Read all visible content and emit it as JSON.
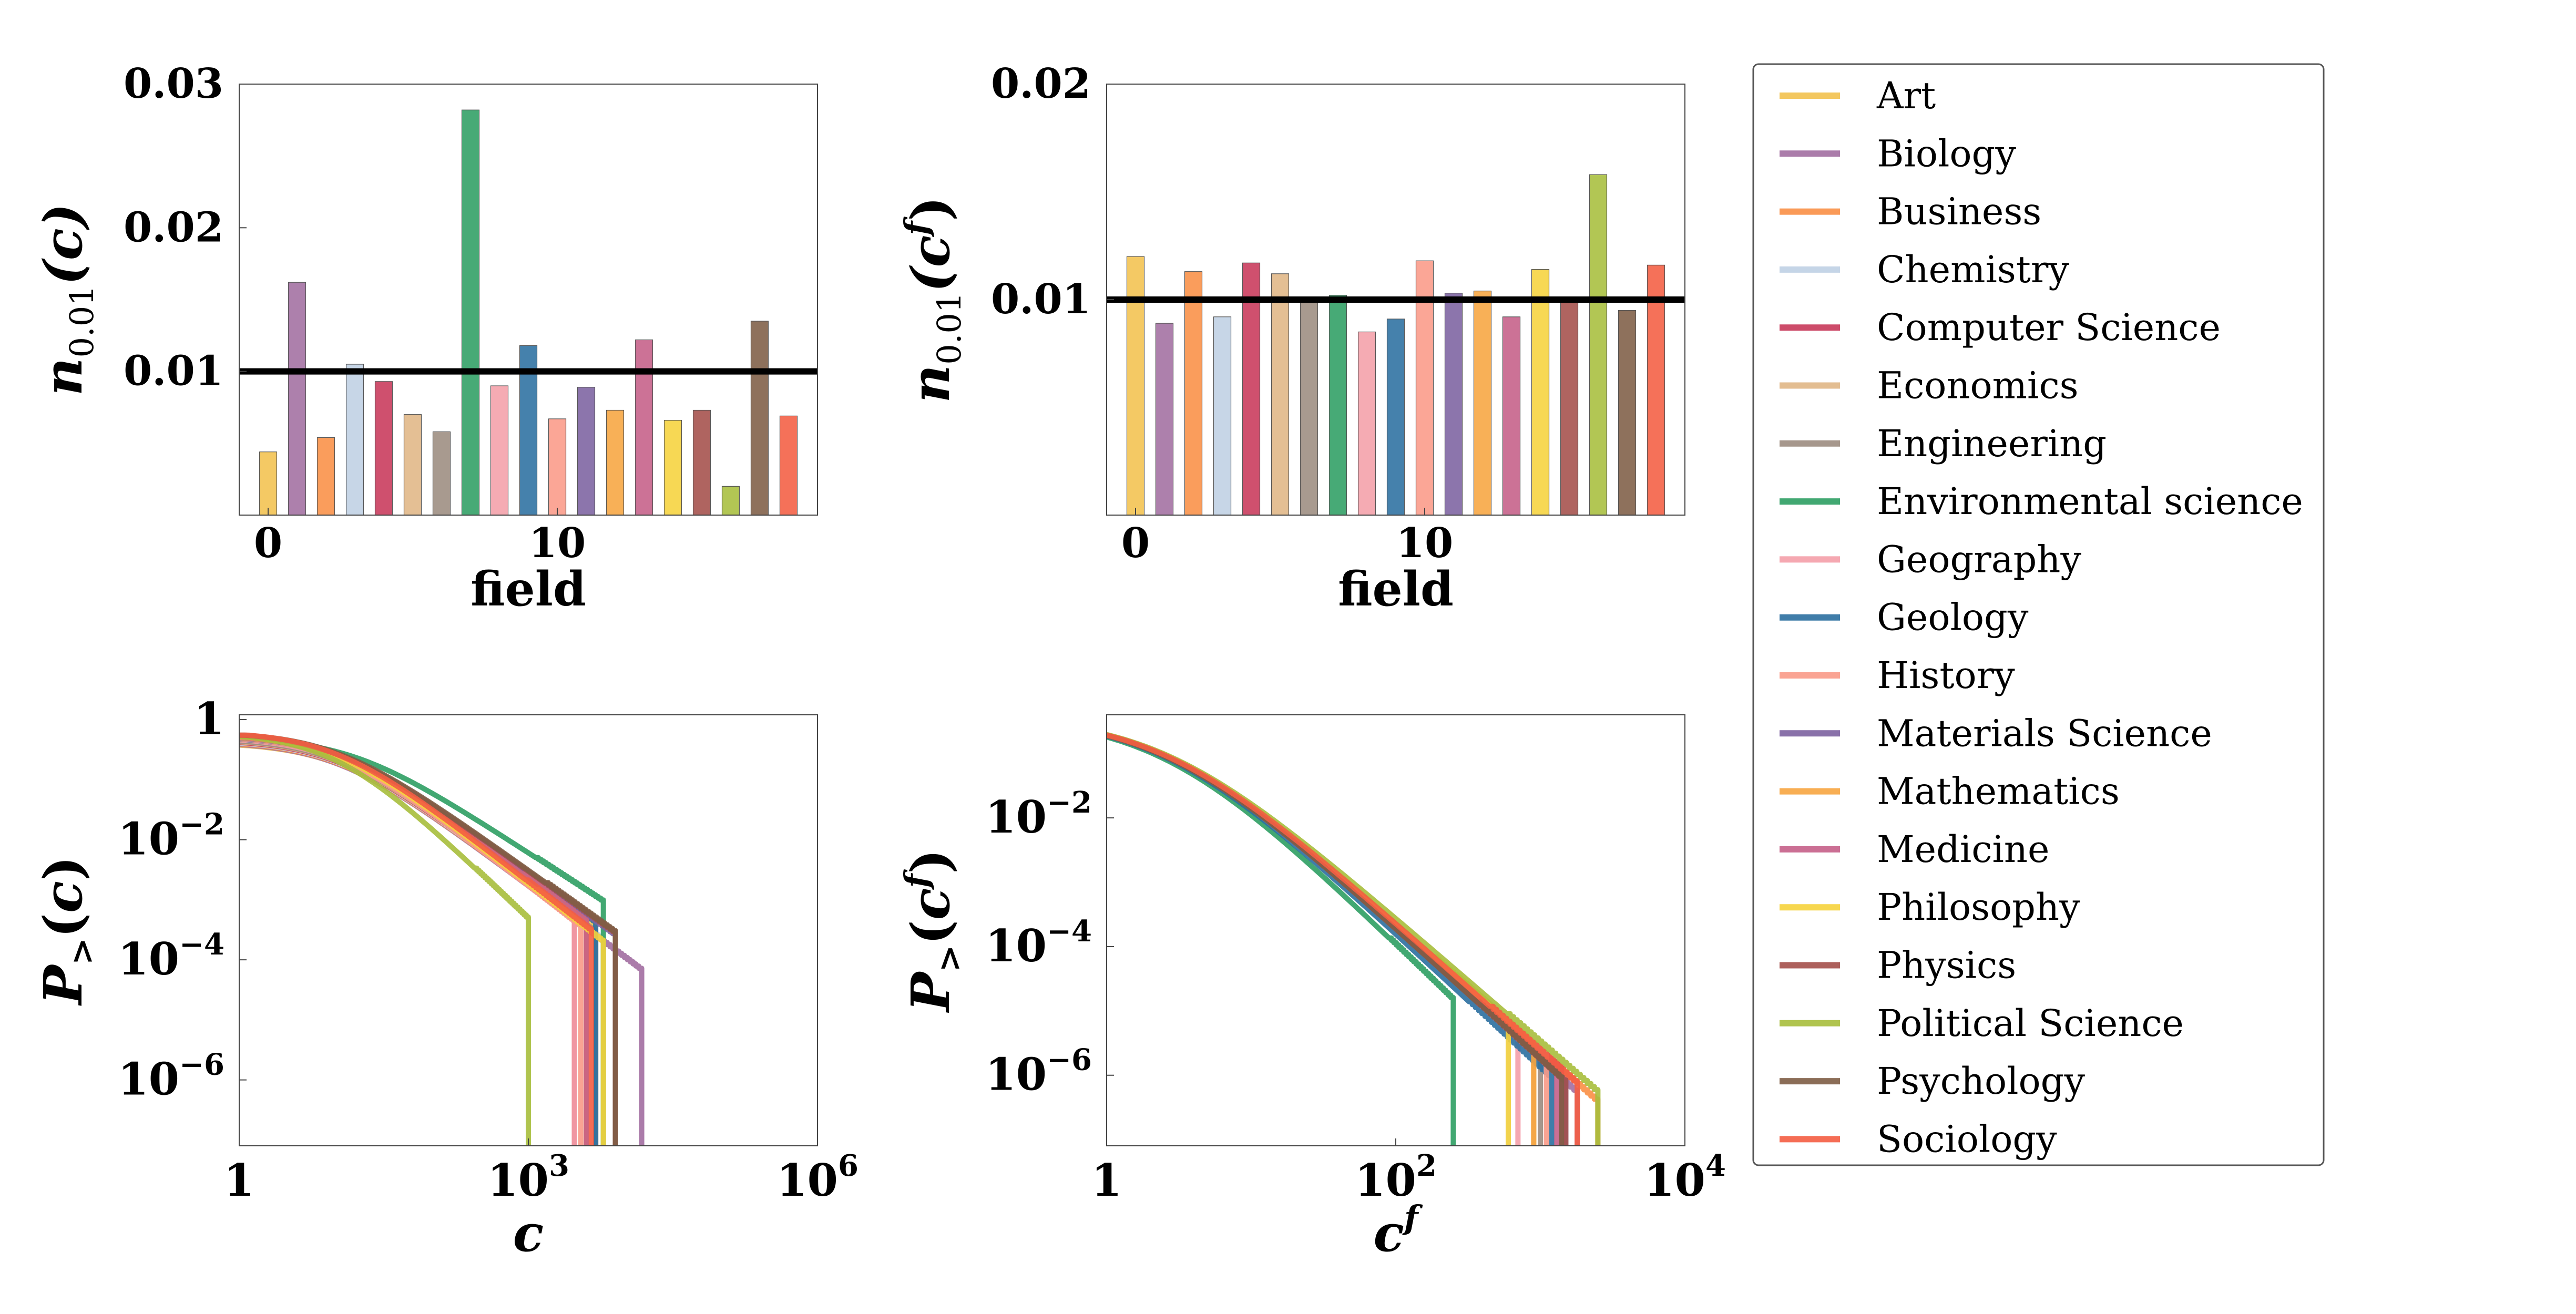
{
  "fields": [
    "Art",
    "Biology",
    "Business",
    "Chemistry",
    "Computer Science",
    "Economics",
    "Engineering",
    "Environmental science",
    "Geography",
    "Geology",
    "History",
    "Materials Science",
    "Mathematics",
    "Medicine",
    "Philosophy",
    "Physics",
    "Political Science",
    "Psychology",
    "Sociology"
  ],
  "colors": [
    "#F2C14E",
    "#A26EA1",
    "#F98F45",
    "#BFD0E4",
    "#C8385A",
    "#E0B685",
    "#9C8C80",
    "#2E9E63",
    "#F49FA8",
    "#2B6FA0",
    "#FA9A87",
    "#7C62A0",
    "#F7A540",
    "#C55F88",
    "#F6D33C",
    "#A44F4A",
    "#A7BE3C",
    "#7E5D45",
    "#F45D42"
  ],
  "chart_data": [
    {
      "id": "top-left",
      "type": "bar",
      "xlabel": "field",
      "ylabel": "n_{0.01}(c)",
      "ylabel_parts": {
        "main": "n",
        "sub": "0.01",
        "arg": "(c)",
        "sup": ""
      },
      "xticks": [
        "0",
        "10"
      ],
      "yticks": [
        "0.01",
        "0.02",
        "0.03"
      ],
      "xlim": [
        -1,
        19
      ],
      "ylim": [
        0,
        0.03
      ],
      "reference_line": 0.01,
      "values": [
        0.0044,
        0.0162,
        0.0054,
        0.0105,
        0.0093,
        0.007,
        0.0058,
        0.0282,
        0.009,
        0.0118,
        0.0067,
        0.0089,
        0.0073,
        0.0122,
        0.0066,
        0.0073,
        0.002,
        0.0135,
        0.0069
      ]
    },
    {
      "id": "top-right",
      "type": "bar",
      "xlabel": "field",
      "ylabel": "n_{0.01}(c^f)",
      "ylabel_parts": {
        "main": "n",
        "sub": "0.01",
        "arg": "(c",
        "sup": "f",
        "close": ")"
      },
      "xticks": [
        "0",
        "10"
      ],
      "yticks": [
        "0.01",
        "0.02"
      ],
      "xlim": [
        -1,
        19
      ],
      "ylim": [
        0,
        0.02
      ],
      "reference_line": 0.01,
      "values": [
        0.012,
        0.0089,
        0.0113,
        0.0092,
        0.0117,
        0.0112,
        0.0101,
        0.0102,
        0.0085,
        0.0091,
        0.0118,
        0.0103,
        0.0104,
        0.0092,
        0.0114,
        0.01,
        0.0158,
        0.0095,
        0.0116
      ]
    },
    {
      "id": "bottom-left",
      "type": "line",
      "xscale": "log",
      "yscale": "log",
      "xlabel": "c",
      "ylabel": "P_>(c)",
      "xticks": [
        {
          "v": 1,
          "base": "1",
          "exp": ""
        },
        {
          "v": 1000,
          "base": "10",
          "exp": "3"
        },
        {
          "v": 1000000,
          "base": "10",
          "exp": "6"
        }
      ],
      "yticks": [
        {
          "v": 1,
          "base": "1",
          "exp": ""
        },
        {
          "v": 0.01,
          "base": "10",
          "exp": "−2"
        },
        {
          "v": 0.0001,
          "base": "10",
          "exp": "−4"
        },
        {
          "v": 1e-06,
          "base": "10",
          "exp": "−6"
        }
      ],
      "xlim": [
        1,
        1000000
      ],
      "ylim": [
        8e-08,
        1.2
      ],
      "series_params": {
        "alpha": [
          1.15,
          1.2,
          1.2,
          1.2,
          1.2,
          1.2,
          1.2,
          1.05,
          1.2,
          1.15,
          1.25,
          1.15,
          1.2,
          1.2,
          1.25,
          1.15,
          1.55,
          1.15,
          1.25
        ],
        "x0": [
          10,
          10,
          10,
          10,
          10,
          10,
          10,
          15,
          10,
          10,
          10,
          10,
          10,
          10,
          10,
          10,
          10,
          10,
          10
        ],
        "xmax": [
          5000,
          15000,
          4000,
          6000,
          3000,
          4000,
          5000,
          6000,
          3000,
          5000,
          3500,
          8000,
          4000,
          4000,
          6000,
          8000,
          1000,
          8000,
          4500
        ]
      }
    },
    {
      "id": "bottom-right",
      "type": "line",
      "xscale": "log",
      "yscale": "log",
      "xlabel": "c^f",
      "ylabel": "P_>(c^f)",
      "xticks": [
        {
          "v": 1,
          "base": "1",
          "exp": ""
        },
        {
          "v": 100,
          "base": "10",
          "exp": "2"
        },
        {
          "v": 10000,
          "base": "10",
          "exp": "4"
        }
      ],
      "yticks": [
        {
          "v": 0.01,
          "base": "10",
          "exp": "−2"
        },
        {
          "v": 0.0001,
          "base": "10",
          "exp": "−4"
        },
        {
          "v": 1e-06,
          "base": "10",
          "exp": "−6"
        }
      ],
      "xlim": [
        1,
        10000
      ],
      "ylim": [
        8e-08,
        0.4
      ],
      "series_params": {
        "alpha": [
          2.0,
          2.05,
          2.0,
          2.05,
          2.0,
          2.05,
          2.05,
          2.2,
          2.05,
          2.1,
          2.0,
          2.05,
          2.0,
          2.05,
          2.0,
          2.05,
          1.95,
          2.05,
          2.0
        ],
        "x0": [
          2.5,
          2.5,
          2.5,
          2.5,
          2.5,
          2.5,
          2.5,
          2.5,
          2.5,
          2.5,
          2.5,
          2.5,
          2.5,
          2.5,
          2.5,
          2.5,
          2.5,
          2.5,
          2.5
        ],
        "xmax": [
          900,
          1800,
          2500,
          600,
          1400,
          900,
          1000,
          250,
          700,
          1200,
          1100,
          1500,
          900,
          1300,
          600,
          1500,
          2500,
          1400,
          1800
        ]
      }
    }
  ],
  "legend": {
    "placement": "right",
    "entries": [
      "Art",
      "Biology",
      "Business",
      "Chemistry",
      "Computer Science",
      "Economics",
      "Engineering",
      "Environmental science",
      "Geography",
      "Geology",
      "History",
      "Materials Science",
      "Mathematics",
      "Medicine",
      "Philosophy",
      "Physics",
      "Political Science",
      "Psychology",
      "Sociology"
    ]
  }
}
